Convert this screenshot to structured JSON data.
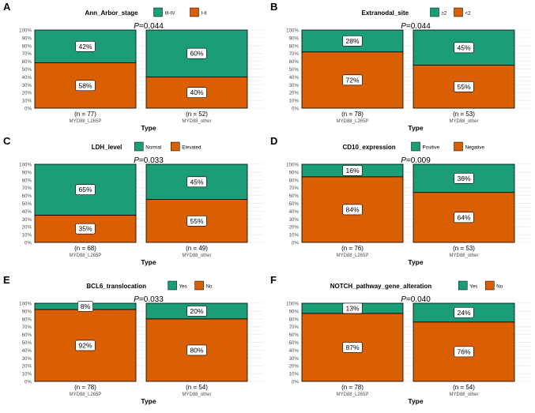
{
  "colors": {
    "top": "#1b9e77",
    "bottom": "#d95f02",
    "grid": "#ebebeb",
    "axis_text": "#4d4d4d",
    "border": "#000000",
    "label_bg": "#ffffff"
  },
  "chart_data": [
    {
      "type": "bar",
      "panel": "A",
      "legend_title": "Ann_Arbor_stage",
      "legend": [
        "III-IV",
        "I-II"
      ],
      "p_label": "P",
      "p_value": "=0.044",
      "xlabel": "Type",
      "ylim": [
        0,
        100
      ],
      "yticks": [
        "0%",
        "10%",
        "20%",
        "30%",
        "40%",
        "50%",
        "60%",
        "70%",
        "80%",
        "90%",
        "100%"
      ],
      "categories": [
        "MYD88_L265P",
        "MYD88_other"
      ],
      "n_labels": [
        "(n = 77)",
        "(n = 52)"
      ],
      "series": [
        {
          "name": "III-IV",
          "values": [
            42,
            60
          ],
          "labels": [
            "42%",
            "60%"
          ]
        },
        {
          "name": "I-II",
          "values": [
            58,
            40
          ],
          "labels": [
            "58%",
            "40%"
          ]
        }
      ]
    },
    {
      "type": "bar",
      "panel": "B",
      "legend_title": "Extranodal_site",
      "legend": [
        "≥2",
        "<2"
      ],
      "p_label": "P",
      "p_value": "=0.044",
      "xlabel": "Type",
      "ylim": [
        0,
        100
      ],
      "yticks": [
        "0%",
        "10%",
        "20%",
        "30%",
        "40%",
        "50%",
        "60%",
        "70%",
        "80%",
        "90%",
        "100%"
      ],
      "categories": [
        "MYD88_L265P",
        "MYD88_other"
      ],
      "n_labels": [
        "(n = 78)",
        "(n = 53)"
      ],
      "series": [
        {
          "name": "≥2",
          "values": [
            28,
            45
          ],
          "labels": [
            "28%",
            "45%"
          ]
        },
        {
          "name": "<2",
          "values": [
            72,
            55
          ],
          "labels": [
            "72%",
            "55%"
          ]
        }
      ]
    },
    {
      "type": "bar",
      "panel": "C",
      "legend_title": "LDH_level",
      "legend": [
        "Normal",
        "Elevated"
      ],
      "p_label": "P",
      "p_value": "=0.033",
      "xlabel": "Type",
      "ylim": [
        0,
        100
      ],
      "yticks": [
        "0%",
        "10%",
        "20%",
        "30%",
        "40%",
        "50%",
        "60%",
        "70%",
        "80%",
        "90%",
        "100%"
      ],
      "categories": [
        "MYD88_L265P",
        "MYD88_other"
      ],
      "n_labels": [
        "(n = 68)",
        "(n = 49)"
      ],
      "series": [
        {
          "name": "Normal",
          "values": [
            65,
            45
          ],
          "labels": [
            "65%",
            "45%"
          ]
        },
        {
          "name": "Elevated",
          "values": [
            35,
            55
          ],
          "labels": [
            "35%",
            "55%"
          ]
        }
      ]
    },
    {
      "type": "bar",
      "panel": "D",
      "legend_title": "CD10_expression",
      "legend": [
        "Positive",
        "Negative"
      ],
      "p_label": "P",
      "p_value": "=0.009",
      "xlabel": "Type",
      "ylim": [
        0,
        100
      ],
      "yticks": [
        "0%",
        "10%",
        "20%",
        "30%",
        "40%",
        "50%",
        "60%",
        "70%",
        "80%",
        "90%",
        "100%"
      ],
      "categories": [
        "MYD88_L265P",
        "MYD88_other"
      ],
      "n_labels": [
        "(n = 76)",
        "(n = 53)"
      ],
      "series": [
        {
          "name": "Positive",
          "values": [
            16,
            36
          ],
          "labels": [
            "16%",
            "36%"
          ]
        },
        {
          "name": "Negative",
          "values": [
            84,
            64
          ],
          "labels": [
            "84%",
            "64%"
          ]
        }
      ]
    },
    {
      "type": "bar",
      "panel": "E",
      "legend_title": "BCL6_translocation",
      "legend": [
        "Yes",
        "No"
      ],
      "p_label": "P",
      "p_value": "=0.033",
      "xlabel": "Type",
      "ylim": [
        0,
        100
      ],
      "yticks": [
        "0%",
        "10%",
        "20%",
        "30%",
        "40%",
        "50%",
        "60%",
        "70%",
        "80%",
        "90%",
        "100%"
      ],
      "categories": [
        "MYD88_L265P",
        "MYD88_other"
      ],
      "n_labels": [
        "(n = 78)",
        "(n = 54)"
      ],
      "series": [
        {
          "name": "Yes",
          "values": [
            8,
            20
          ],
          "labels": [
            "8%",
            "20%"
          ]
        },
        {
          "name": "No",
          "values": [
            92,
            80
          ],
          "labels": [
            "92%",
            "80%"
          ]
        }
      ]
    },
    {
      "type": "bar",
      "panel": "F",
      "legend_title": "NOTCH_pathway_gene_alteration",
      "legend": [
        "Yes",
        "No"
      ],
      "p_label": "P",
      "p_value": "=0.040",
      "xlabel": "Type",
      "ylim": [
        0,
        100
      ],
      "yticks": [
        "0%",
        "10%",
        "20%",
        "30%",
        "40%",
        "50%",
        "60%",
        "70%",
        "80%",
        "90%",
        "100%"
      ],
      "categories": [
        "MYD88_L265P",
        "MYD88_other"
      ],
      "n_labels": [
        "(n = 78)",
        "(n = 54)"
      ],
      "series": [
        {
          "name": "Yes",
          "values": [
            13,
            24
          ],
          "labels": [
            "13%",
            "24%"
          ]
        },
        {
          "name": "No",
          "values": [
            87,
            76
          ],
          "labels": [
            "87%",
            "76%"
          ]
        }
      ]
    }
  ]
}
